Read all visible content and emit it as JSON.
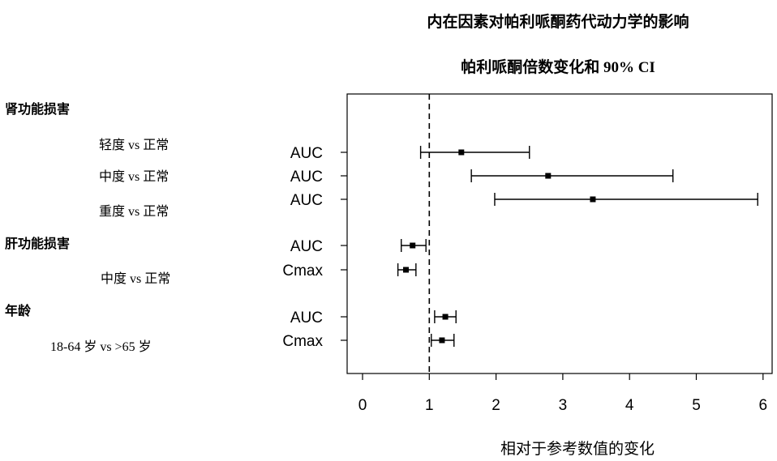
{
  "chart_data": {
    "type": "forest",
    "title": "内在因素对帕利哌酮药代动力学的影响",
    "subtitle": "帕利哌酮倍数变化和 90% CI",
    "xlabel": "相对于参考数值的变化",
    "xlim": [
      -0.2,
      6.1
    ],
    "xticks": [
      0,
      1,
      2,
      3,
      4,
      5,
      6
    ],
    "reference_line": 1,
    "groups": [
      {
        "label": "肾功能损害",
        "subgroups": [
          "轻度 vs 正常",
          "中度 vs 正常",
          "重度 vs 正常"
        ]
      },
      {
        "label": "肝功能损害",
        "subgroups": [
          "中度 vs 正常"
        ]
      },
      {
        "label": "年龄",
        "subgroups": [
          "18-64 岁 vs >65 岁"
        ]
      }
    ],
    "rows": [
      {
        "param": "AUC",
        "estimate": 1.48,
        "lower": 0.87,
        "upper": 2.5
      },
      {
        "param": "AUC",
        "estimate": 2.78,
        "lower": 1.63,
        "upper": 4.65
      },
      {
        "param": "AUC",
        "estimate": 3.45,
        "lower": 1.98,
        "upper": 5.92
      },
      {
        "param": "AUC",
        "estimate": 0.75,
        "lower": 0.58,
        "upper": 0.95
      },
      {
        "param": "Cmax",
        "estimate": 0.65,
        "lower": 0.53,
        "upper": 0.8
      },
      {
        "param": "AUC",
        "estimate": 1.24,
        "lower": 1.08,
        "upper": 1.4
      },
      {
        "param": "Cmax",
        "estimate": 1.19,
        "lower": 1.03,
        "upper": 1.37
      }
    ]
  }
}
